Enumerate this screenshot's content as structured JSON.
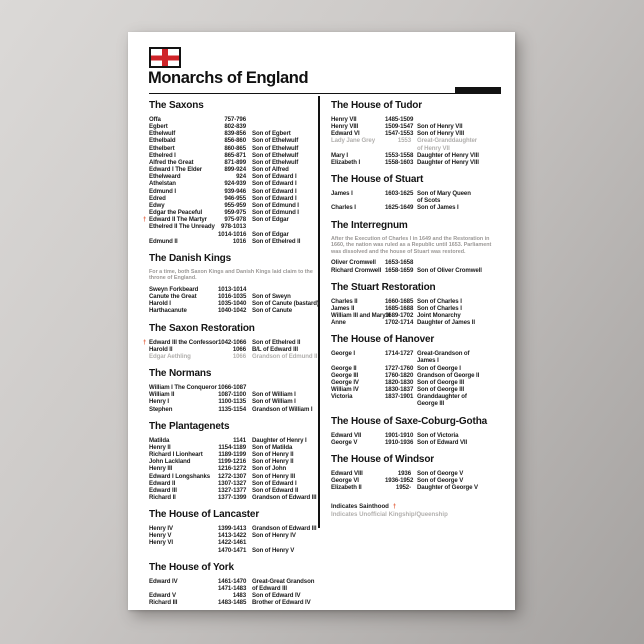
{
  "title": "Monarchs of England",
  "flag": "england-flag",
  "colors": {
    "dagger_accent": "#e0522c",
    "flag_cross_red": "#cf2429",
    "text": "#1b1b1b",
    "unofficial_gray": "#b2b0ae",
    "note_gray": "#9b9896",
    "poster_bg": "#ffffff"
  },
  "legend": {
    "sainthood_label": "Indicates Sainthood",
    "dagger": "†",
    "unofficial_label": "Indicates Unofficial Kingship/Queenship"
  },
  "columns": [
    {
      "sections": [
        {
          "title": "The Saxons",
          "rows": [
            {
              "n": "Offa",
              "d": "757-796",
              "r": ""
            },
            {
              "n": "Egbert",
              "d": "802-839",
              "r": ""
            },
            {
              "n": "Ethelwulf",
              "d": "839-856",
              "r": "Son of Egbert"
            },
            {
              "n": "Ethelbald",
              "d": "856-860",
              "r": "Son of Ethelwulf"
            },
            {
              "n": "Ethelbert",
              "d": "860-865",
              "r": "Son of Ethelwulf"
            },
            {
              "n": "Ethelred I",
              "d": "865-871",
              "r": "Son of Ethelwulf"
            },
            {
              "n": "Alfred the Great",
              "d": "871-899",
              "r": "Son of Ethelwulf"
            },
            {
              "n": "Edward I The Elder",
              "d": "899-924",
              "r": "Son of Alfred"
            },
            {
              "n": "Ethelweard",
              "d": "924",
              "r": "Son of Edward I"
            },
            {
              "n": "Athelstan",
              "d": "924-939",
              "r": "Son of Edward I"
            },
            {
              "n": "Edmund I",
              "d": "939-946",
              "r": "Son of Edward I"
            },
            {
              "n": "Edred",
              "d": "946-955",
              "r": "Son of Edward I"
            },
            {
              "n": "Edwy",
              "d": "955-959",
              "r": "Son of Edmund I"
            },
            {
              "n": "Edgar the Peaceful",
              "d": "959-975",
              "r": "Son of Edmund I"
            },
            {
              "n": "Edward II The Martyr",
              "d": "975-978",
              "r": "Son of Edgar",
              "f": "saint"
            },
            {
              "n": "Ethelred II The Unready",
              "d": "978-1013",
              "r": ""
            },
            {
              "n": "",
              "d": "1014-1016",
              "r": "Son of Edgar"
            },
            {
              "n": "Edmund II",
              "d": "1016",
              "r": "Son of Ethelred II"
            }
          ]
        },
        {
          "title": "The Danish Kings",
          "note": "For a time, both Saxon Kings and Danish Kings laid claim to the throne of England.",
          "rows": [
            {
              "n": "Sweyn Forkbeard",
              "d": "1013-1014",
              "r": ""
            },
            {
              "n": "Canute the Great",
              "d": "1016-1035",
              "r": "Son of Sweyn"
            },
            {
              "n": "Harold I",
              "d": "1035-1040",
              "r": "Son of Canute (bastard)"
            },
            {
              "n": "Harthacanute",
              "d": "1040-1042",
              "r": "Son of Canute"
            }
          ]
        },
        {
          "title": "The Saxon Restoration",
          "rows": [
            {
              "n": "Edward III the Confessor",
              "d": "1042-1066",
              "r": "Son of Ethelred II",
              "f": "saint"
            },
            {
              "n": "Harold II",
              "d": "1066",
              "r": "B/L of Edward III"
            },
            {
              "n": "Edgar Aethling",
              "d": "1066",
              "r": "Grandson of Edmund II",
              "f": "gray"
            }
          ]
        },
        {
          "title": "The Normans",
          "rows": [
            {
              "n": "William I The Conqueror",
              "d": "1066-1087",
              "r": ""
            },
            {
              "n": "William II",
              "d": "1087-1100",
              "r": "Son of William I"
            },
            {
              "n": "Henry I",
              "d": "1100-1135",
              "r": "Son of William I"
            },
            {
              "n": "Stephen",
              "d": "1135-1154",
              "r": "Grandson of William I"
            }
          ]
        },
        {
          "title": "The Plantagenets",
          "rows": [
            {
              "n": "Matilda",
              "d": "1141",
              "r": "Daughter of Henry I"
            },
            {
              "n": "Henry II",
              "d": "1154-1189",
              "r": "Son of Matilda"
            },
            {
              "n": "Richard I Lionheart",
              "d": "1189-1199",
              "r": "Son of Henry II"
            },
            {
              "n": "John Lackland",
              "d": "1199-1216",
              "r": "Son of Henry II"
            },
            {
              "n": "Henry III",
              "d": "1216-1272",
              "r": "Son of John"
            },
            {
              "n": "Edward I Longshanks",
              "d": "1272-1307",
              "r": "Son of Henry III"
            },
            {
              "n": "Edward II",
              "d": "1307-1327",
              "r": "Son of Edward I"
            },
            {
              "n": "Edward III",
              "d": "1327-1377",
              "r": "Son of Edward II"
            },
            {
              "n": "Richard II",
              "d": "1377-1399",
              "r": "Grandson of Edward III"
            }
          ]
        },
        {
          "title": "The House of Lancaster",
          "rows": [
            {
              "n": "Henry IV",
              "d": "1399-1413",
              "r": "Grandson of Edward III"
            },
            {
              "n": "Henry V",
              "d": "1413-1422",
              "r": "Son of Henry IV"
            },
            {
              "n": "Henry VI",
              "d": "1422-1461",
              "r": ""
            },
            {
              "n": "",
              "d": "1470-1471",
              "r": "Son of Henry V"
            }
          ]
        },
        {
          "title": "The House of York",
          "rows": [
            {
              "n": "Edward IV",
              "d": "1461-1470",
              "r": "Great-Great Grandson"
            },
            {
              "n": "",
              "d": "1471-1483",
              "r": "of Edward III"
            },
            {
              "n": "Edward V",
              "d": "1483",
              "r": "Son of Edward IV"
            },
            {
              "n": "Richard III",
              "d": "1483-1485",
              "r": "Brother of Edward IV"
            }
          ]
        }
      ]
    },
    {
      "sections": [
        {
          "title": "The House of Tudor",
          "rows": [
            {
              "n": "Henry VII",
              "d": "1485-1509",
              "r": ""
            },
            {
              "n": "Henry VIII",
              "d": "1509-1547",
              "r": "Son of Henry VII"
            },
            {
              "n": "Edward VI",
              "d": "1547-1553",
              "r": "Son of Henry VIII"
            },
            {
              "n": "Lady Jane Grey",
              "d": "1553",
              "r": "Great-Granddaughter",
              "f": "gray"
            },
            {
              "n": "",
              "d": "",
              "r": "of Henry VII",
              "f": "gray"
            },
            {
              "n": "Mary I",
              "d": "1553-1558",
              "r": "Daughter of Henry VIII"
            },
            {
              "n": "Elizabeth I",
              "d": "1558-1603",
              "r": "Daughter of Henry VIII"
            }
          ]
        },
        {
          "title": "The House of Stuart",
          "rows": [
            {
              "n": "James I",
              "d": "1603-1625",
              "r": "Son of Mary Queen"
            },
            {
              "n": "",
              "d": "",
              "r": "of Scots"
            },
            {
              "n": "Charles I",
              "d": "1625-1649",
              "r": "Son of James I"
            }
          ]
        },
        {
          "title": "The Interregnum",
          "note": "After the Execution of Charles I in 1649 and the Restoration in 1660, the nation was ruled as a Republic until 1653. Parliament was dissolved and the house of Stuart was restored.",
          "rows": [
            {
              "n": "Oliver Cromwell",
              "d": "1653-1658",
              "r": ""
            },
            {
              "n": "Richard Cromwell",
              "d": "1658-1659",
              "r": "Son of Oliver Cromwell"
            }
          ]
        },
        {
          "title": "The Stuart Restoration",
          "rows": [
            {
              "n": "Charles II",
              "d": "1660-1685",
              "r": "Son of Charles I"
            },
            {
              "n": "James II",
              "d": "1685-1688",
              "r": "Son of Charles I"
            },
            {
              "n": "William III and Mary II",
              "d": "1689-1702",
              "r": "Joint Monarchy"
            },
            {
              "n": "Anne",
              "d": "1702-1714",
              "r": "Daughter of James II"
            }
          ]
        },
        {
          "title": "The House of Hanover",
          "rows": [
            {
              "n": "George I",
              "d": "1714-1727",
              "r": "Great-Grandson of"
            },
            {
              "n": "",
              "d": "",
              "r": "James I"
            },
            {
              "n": "George II",
              "d": "1727-1760",
              "r": "Son of George I"
            },
            {
              "n": "George III",
              "d": "1760-1820",
              "r": "Grandson of George II"
            },
            {
              "n": "George IV",
              "d": "1820-1830",
              "r": "Son of George III"
            },
            {
              "n": "William IV",
              "d": "1830-1837",
              "r": "Son of George III"
            },
            {
              "n": "Victoria",
              "d": "1837-1901",
              "r": "Granddaughter of"
            },
            {
              "n": "",
              "d": "",
              "r": "George III"
            }
          ]
        },
        {
          "title": "The House of Saxe-Coburg-Gotha",
          "rows": [
            {
              "n": "Edward VII",
              "d": "1901-1910",
              "r": "Son of Victoria"
            },
            {
              "n": "George V",
              "d": "1910-1936",
              "r": "Son of Edward VII"
            }
          ]
        },
        {
          "title": "The House of Windsor",
          "rows": [
            {
              "n": "Edward VIII",
              "d": "1936",
              "r": "Son of George V"
            },
            {
              "n": "George VI",
              "d": "1936-1952",
              "r": "Son of George V"
            },
            {
              "n": "Elizabeth II",
              "d": "1952-",
              "r": "Daughter of George V"
            }
          ]
        }
      ]
    }
  ]
}
